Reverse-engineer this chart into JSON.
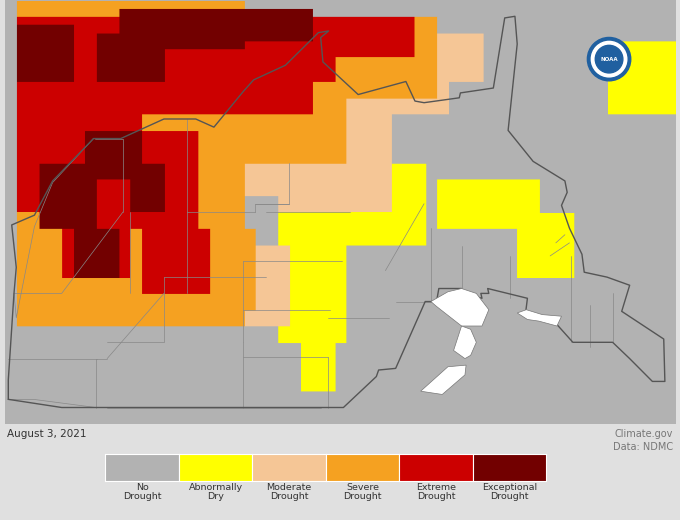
{
  "date_text": "August 3, 2021",
  "source_line1": "Climate.gov",
  "source_line2": "Data: NDMC",
  "legend_colors": [
    "#b2b2b2",
    "#ffff00",
    "#f5c696",
    "#f5a121",
    "#cc0000",
    "#720000"
  ],
  "legend_labels": [
    "No\nDrought",
    "Abnormally\nDry",
    "Moderate\nDrought",
    "Severe\nDrought",
    "Extreme\nDrought",
    "Exceptional\nDrought"
  ],
  "bg_color": "#e0e0e0",
  "water_color": "#c8d8e8",
  "land_gray": "#b2b2b2",
  "fig_width": 6.8,
  "fig_height": 5.2,
  "dpi": 100
}
